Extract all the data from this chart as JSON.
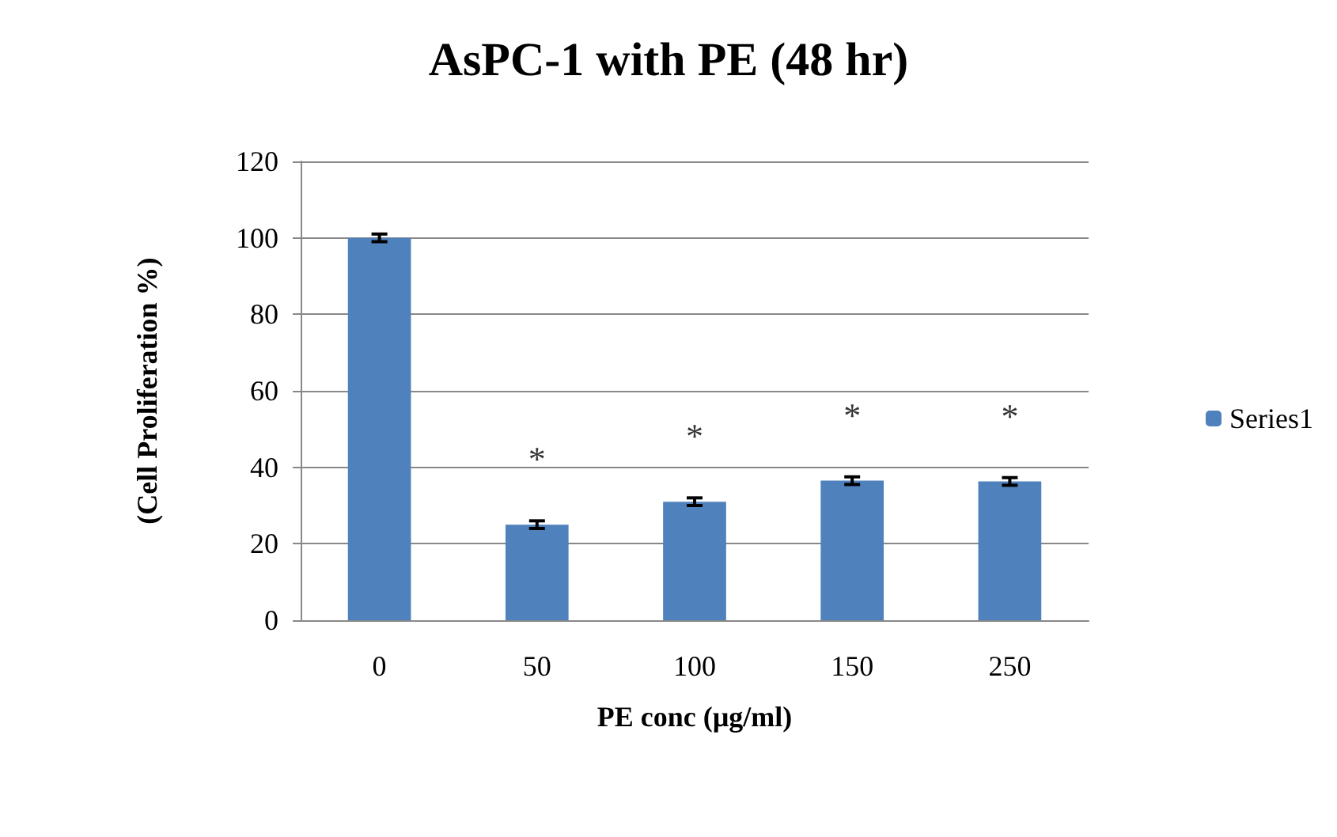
{
  "chart_data": {
    "type": "bar",
    "title": "AsPC-1 with PE (48 hr)",
    "xlabel": "PE conc (µg/ml)",
    "ylabel": "(Cell Proliferation %)",
    "categories": [
      "0",
      "50",
      "100",
      "150",
      "250"
    ],
    "series": [
      {
        "name": "Series1",
        "color": "#4f81bd",
        "values": [
          100,
          25,
          31,
          36.5,
          36.3
        ],
        "errors": [
          1,
          1,
          1,
          1,
          1
        ]
      }
    ],
    "ylim": [
      0,
      120
    ],
    "yticks": [
      0,
      20,
      40,
      60,
      80,
      100,
      120
    ],
    "grid": "y",
    "legend": "right",
    "annotations": [
      "*",
      "*",
      "*",
      "*"
    ]
  }
}
